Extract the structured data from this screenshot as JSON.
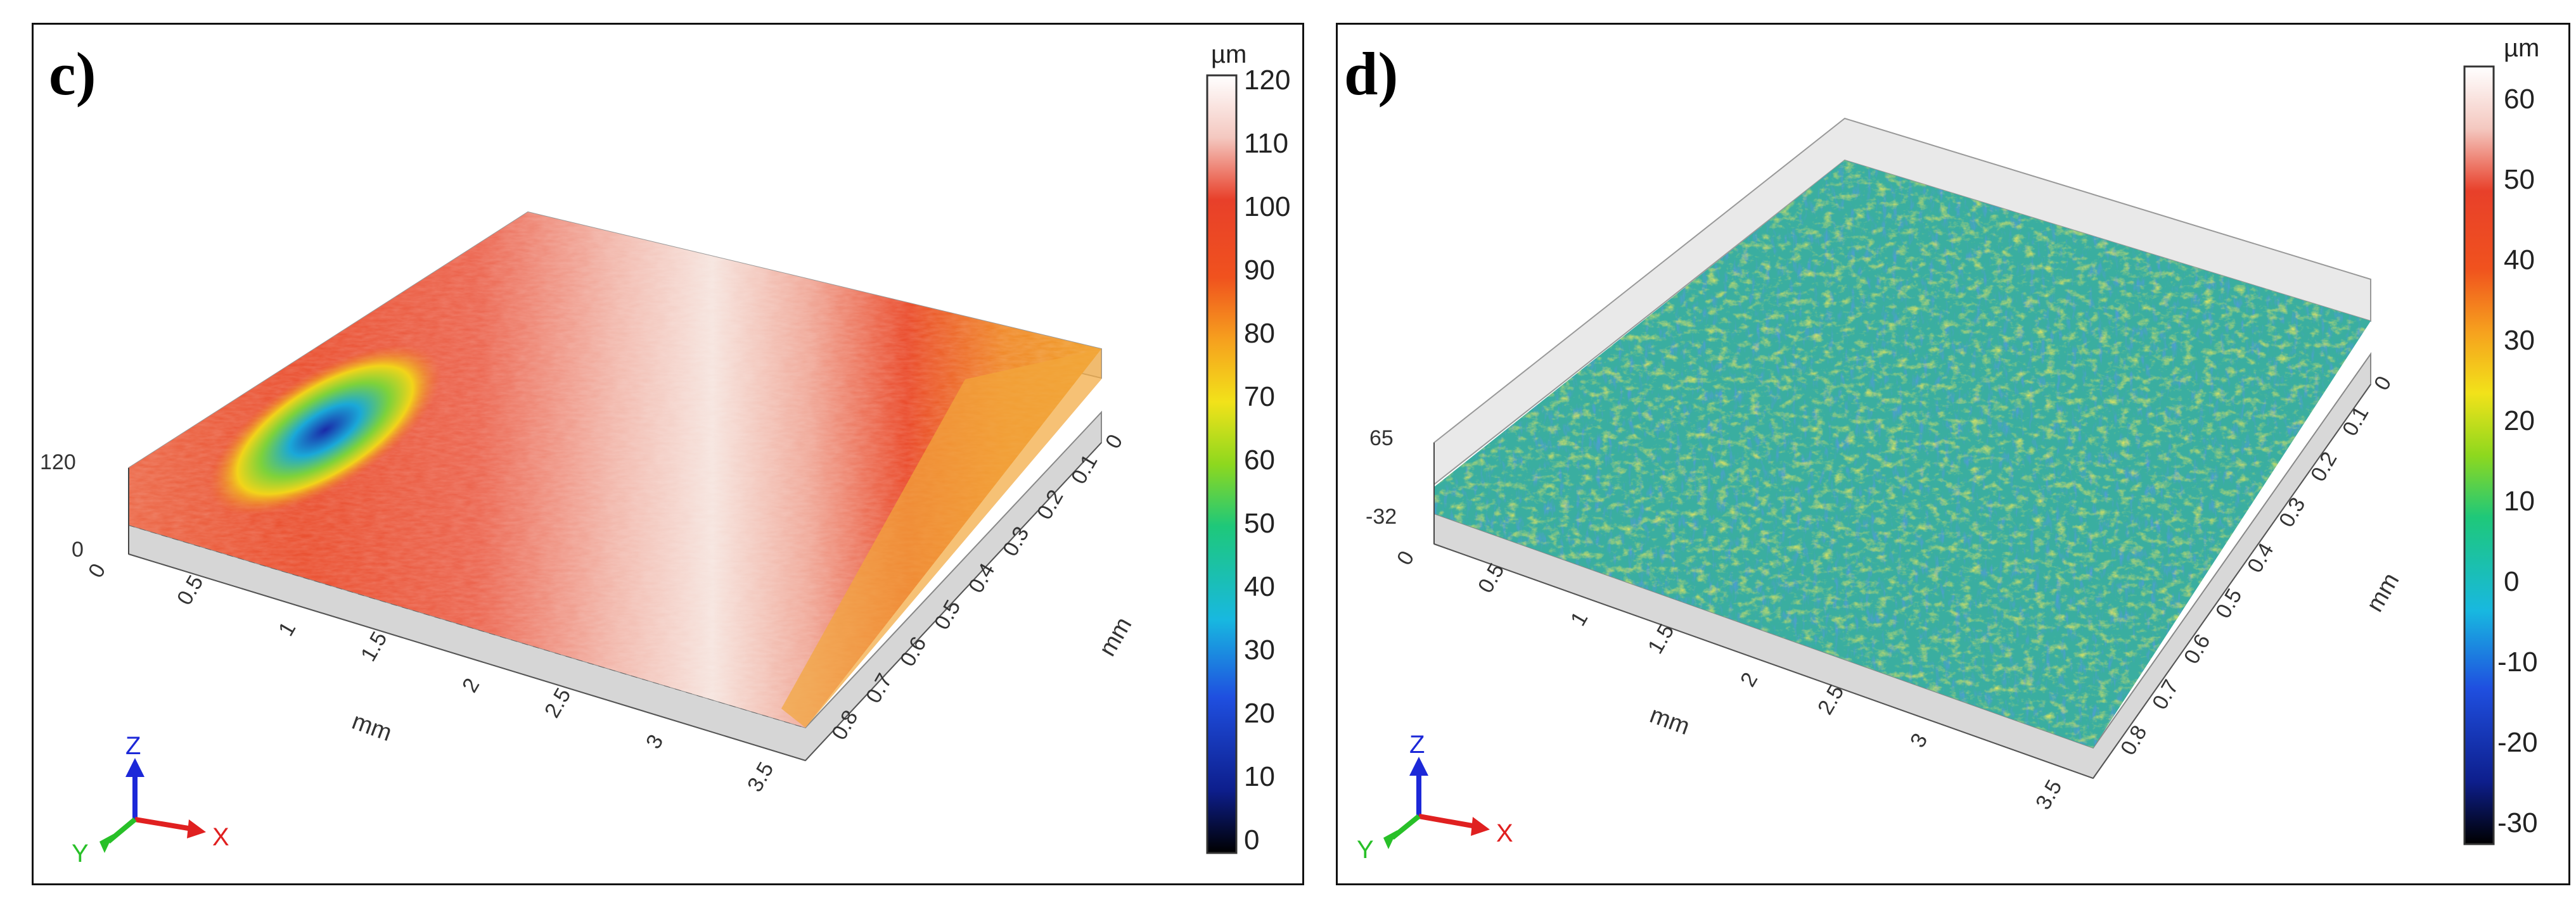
{
  "panels": [
    {
      "label": "c)",
      "colorbar": {
        "unit": "µm",
        "ticks": [
          "120",
          "110",
          "100",
          "90",
          "80",
          "70",
          "60",
          "50",
          "40",
          "30",
          "20",
          "10",
          "0"
        ]
      },
      "x_axis": {
        "ticks": [
          "0",
          "0.5",
          "1",
          "1.5",
          "2",
          "2.5",
          "3",
          "3.5"
        ],
        "unit": "mm"
      },
      "y_axis": {
        "ticks": [
          "0",
          "0.1",
          "0.2",
          "0.3",
          "0.4",
          "0.5",
          "0.6",
          "0.7",
          "0.8"
        ],
        "unit": "mm"
      },
      "z_axis": {
        "max": "120",
        "min": "0"
      },
      "triad": {
        "x": "X",
        "y": "Y",
        "z": "Z"
      }
    },
    {
      "label": "d)",
      "colorbar": {
        "unit": "µm",
        "ticks": [
          "60",
          "50",
          "40",
          "30",
          "20",
          "10",
          "0",
          "-10",
          "-20",
          "-30"
        ]
      },
      "x_axis": {
        "ticks": [
          "0",
          "0.5",
          "1",
          "1.5",
          "2",
          "2.5",
          "3",
          "3.5"
        ],
        "unit": "mm"
      },
      "y_axis": {
        "ticks": [
          "0",
          "0.1",
          "0.2",
          "0.3",
          "0.4",
          "0.5",
          "0.6",
          "0.7",
          "0.8"
        ],
        "unit": "mm"
      },
      "z_axis": {
        "max": "65",
        "min": "-32"
      },
      "triad": {
        "x": "X",
        "y": "Y",
        "z": "Z"
      }
    }
  ],
  "colors": {
    "colormap": [
      "#000000",
      "#0d1e8c",
      "#1f4fe0",
      "#18b8e0",
      "#1ec87a",
      "#8ed81e",
      "#f2e21a",
      "#f6a01e",
      "#f0521e",
      "#e8402a",
      "#f4c8c0",
      "#ffffff"
    ],
    "surface_c_main": "#ea5a3a",
    "surface_c_white": "#f6e2dc",
    "surface_d_main": "#36a6a0",
    "triad_x": "#e02020",
    "triad_y": "#28c028",
    "triad_z": "#1c28d8"
  }
}
